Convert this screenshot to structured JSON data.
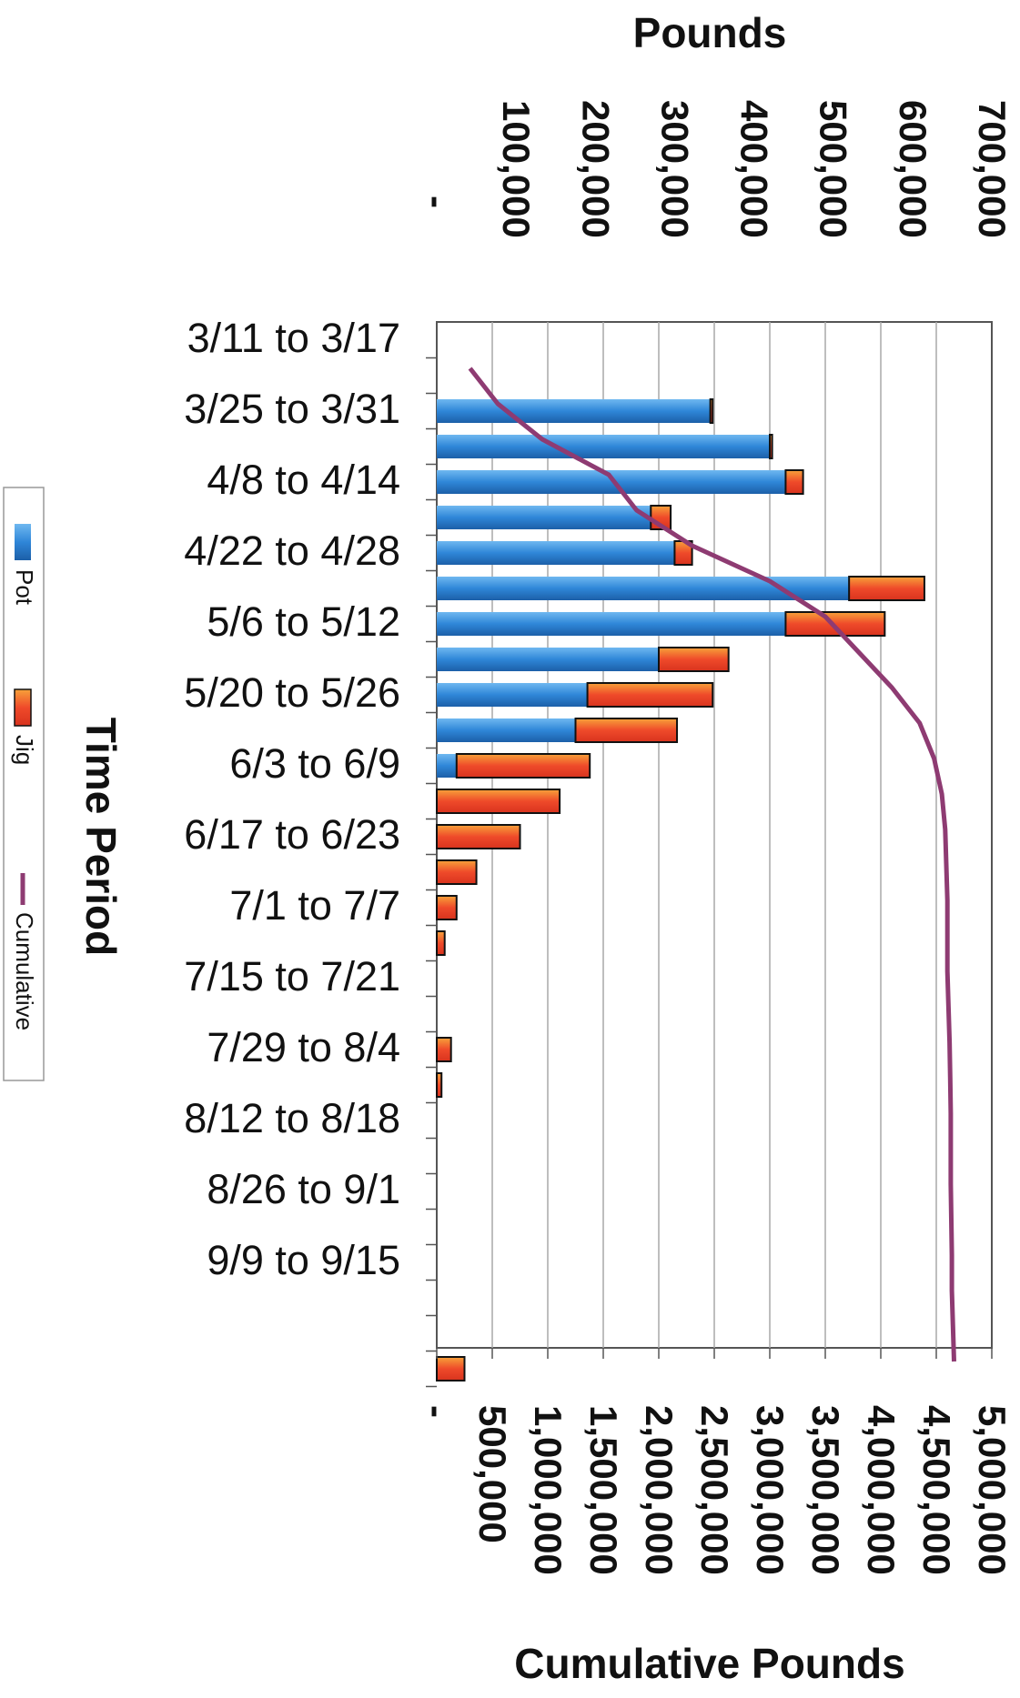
{
  "chart_data": {
    "type": "bar",
    "orientation": "horizontal",
    "stacked": true,
    "x_top_axis": {
      "title": "Pounds",
      "range": [
        0,
        700000
      ],
      "tick_labels": [
        "-",
        "100,000",
        "200,000",
        "300,000",
        "400,000",
        "500,000",
        "600,000",
        "700,000"
      ]
    },
    "x_bottom_axis": {
      "title": "Cumulative Pounds",
      "range": [
        0,
        5000000
      ],
      "tick_labels": [
        "-",
        "500,000",
        "1,000,000",
        "1,500,000",
        "2,000,000",
        "2,500,000",
        "3,000,000",
        "3,500,000",
        "4,000,000",
        "4,500,000",
        "5,000,000"
      ]
    },
    "y_axis": {
      "title": "Time Period",
      "tick_labels": [
        "3/11 to 3/17",
        "3/25 to 3/31",
        "4/8 to 4/14",
        "4/22 to 4/28",
        "5/6 to 5/12",
        "5/20 to 5/26",
        "6/3 to 6/9",
        "6/17 to 6/23",
        "7/1 to 7/7",
        "7/15 to 7/21",
        "7/29 to 8/4",
        "8/12 to 8/18",
        "8/26 to 9/1",
        "9/9 to 9/15"
      ]
    },
    "grid": true,
    "legend_position": "left, rotated",
    "series": [
      {
        "name": "Pot",
        "axis": "top",
        "color": "#2f86d8",
        "values": [
          0,
          345000,
          420000,
          440000,
          270000,
          300000,
          520000,
          440000,
          280000,
          190000,
          175000,
          25000,
          0,
          0,
          0,
          0,
          0,
          0,
          0,
          0,
          0,
          0,
          0,
          0,
          0,
          0,
          0,
          0,
          0
        ]
      },
      {
        "name": "Jig",
        "axis": "top",
        "color": "#ef4a2a",
        "values": [
          0,
          3000,
          3000,
          22000,
          25000,
          22000,
          95000,
          125000,
          88000,
          158000,
          128000,
          168000,
          155000,
          105000,
          50000,
          25000,
          10000,
          0,
          0,
          18000,
          6000,
          0,
          0,
          0,
          0,
          0,
          0,
          0,
          35000
        ]
      },
      {
        "name": "Cumulative",
        "axis": "bottom",
        "type": "line",
        "color": "#8e3b72",
        "values": [
          300000,
          550000,
          950000,
          1550000,
          1800000,
          2300000,
          3000000,
          3500000,
          3800000,
          4100000,
          4350000,
          4480000,
          4550000,
          4580000,
          4590000,
          4600000,
          4600000,
          4600000,
          4610000,
          4620000,
          4625000,
          4630000,
          4630000,
          4630000,
          4635000,
          4640000,
          4640000,
          4650000,
          4660000
        ]
      }
    ]
  }
}
